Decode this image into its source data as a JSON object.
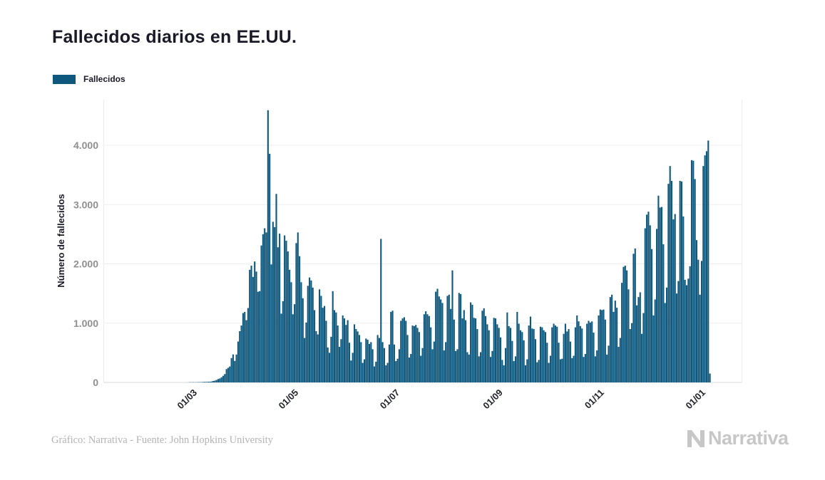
{
  "page": {
    "background": "#ffffff"
  },
  "header": {
    "title": "Fallecidos diarios en EE.UU."
  },
  "legend": {
    "label": "Fallecidos",
    "swatch_color": "#0E587E"
  },
  "footer": {
    "credit": "Gráfico: Narrativa - Fuente: John Hopkins University",
    "logo_text": "Narrativa"
  },
  "chart_data": {
    "type": "bar",
    "title": "Fallecidos diarios en EE.UU.",
    "series_name": "Fallecidos",
    "xlabel": "",
    "ylabel": "Número de fallecidos",
    "bar_color": "#0E587E",
    "grid": true,
    "legend_position": "top-left",
    "ylim": [
      0,
      4760
    ],
    "y_ticks": [
      0,
      1000,
      2000,
      3000,
      4000
    ],
    "y_tick_labels": [
      "0",
      "1.000",
      "2.000",
      "3.000",
      "4.000"
    ],
    "x_tick_labels": [
      "01/03",
      "01/05",
      "01/07",
      "01/09",
      "01/11",
      "01/01"
    ],
    "x_tick_day_offsets": [
      39,
      100,
      161,
      223,
      284,
      345
    ],
    "start_date": "2020-01-22",
    "x_unit": "day",
    "values": [
      0,
      0,
      0,
      0,
      0,
      0,
      0,
      0,
      0,
      0,
      0,
      0,
      0,
      0,
      0,
      0,
      0,
      0,
      0,
      0,
      0,
      0,
      0,
      0,
      0,
      0,
      0,
      0,
      0,
      0,
      0,
      0,
      0,
      0,
      0,
      0,
      0,
      0,
      1,
      1,
      4,
      3,
      4,
      3,
      4,
      5,
      5,
      6,
      8,
      10,
      9,
      11,
      12,
      16,
      24,
      30,
      42,
      57,
      67,
      87,
      112,
      141,
      225,
      247,
      268,
      411,
      472,
      363,
      470,
      690,
      865,
      960,
      1170,
      1190,
      1050,
      1255,
      1900,
      1970,
      1780,
      2040,
      1870,
      1530,
      1540,
      2310,
      2500,
      2600,
      2530,
      4591,
      3857,
      1990,
      2710,
      2620,
      3180,
      2280,
      2510,
      1160,
      1370,
      2480,
      2390,
      2210,
      1900,
      1690,
      1150,
      1320,
      2350,
      2530,
      2130,
      1690,
      1420,
      750,
      1010,
      1630,
      1770,
      1720,
      1600,
      1220,
      865,
      810,
      1570,
      1460,
      1260,
      1290,
      1040,
      590,
      500,
      770,
      1540,
      1220,
      1180,
      960,
      600,
      730,
      1130,
      1080,
      970,
      1050,
      670,
      370,
      500,
      980,
      900,
      860,
      800,
      680,
      330,
      390,
      740,
      720,
      650,
      680,
      560,
      270,
      350,
      800,
      750,
      2421,
      680,
      580,
      290,
      330,
      640,
      1190,
      1210,
      640,
      360,
      400,
      560,
      1040,
      1080,
      1100,
      1040,
      800,
      420,
      480,
      960,
      950,
      970,
      920,
      850,
      450,
      580,
      1150,
      1200,
      1150,
      1120,
      930,
      560,
      690,
      1530,
      1580,
      1450,
      1400,
      1340,
      540,
      680,
      1460,
      1480,
      1240,
      1890,
      1060,
      530,
      560,
      1510,
      1490,
      1080,
      1220,
      1050,
      510,
      470,
      1350,
      1310,
      1090,
      1080,
      900,
      440,
      510,
      1210,
      1250,
      1120,
      980,
      880,
      430,
      530,
      1090,
      1080,
      980,
      920,
      760,
      380,
      290,
      580,
      1180,
      950,
      920,
      700,
      360,
      440,
      1190,
      990,
      880,
      850,
      710,
      290,
      390,
      960,
      1110,
      910,
      900,
      730,
      340,
      380,
      940,
      930,
      880,
      850,
      670,
      330,
      450,
      930,
      990,
      960,
      940,
      670,
      390,
      400,
      820,
      990,
      860,
      900,
      690,
      410,
      450,
      930,
      1130,
      1030,
      950,
      910,
      430,
      480,
      990,
      1040,
      1010,
      1030,
      840,
      440,
      540,
      1130,
      1230,
      1220,
      1230,
      1060,
      470,
      620,
      1440,
      1480,
      1190,
      1380,
      1260,
      600,
      750,
      1680,
      1950,
      1970,
      1890,
      1570,
      900,
      1000,
      2170,
      2260,
      1300,
      1440,
      1520,
      820,
      1170,
      2600,
      2830,
      2880,
      2650,
      2250,
      1130,
      1400,
      2590,
      3150,
      2950,
      2960,
      2330,
      1340,
      1600,
      3350,
      3650,
      3400,
      2750,
      2840,
      1500,
      1710,
      3400,
      3390,
      2800,
      1730,
      1640,
      1750,
      1960,
      3750,
      3740,
      3430,
      2400,
      2070,
      1480,
      2050,
      3650,
      3830,
      3900,
      4080,
      150
    ]
  }
}
